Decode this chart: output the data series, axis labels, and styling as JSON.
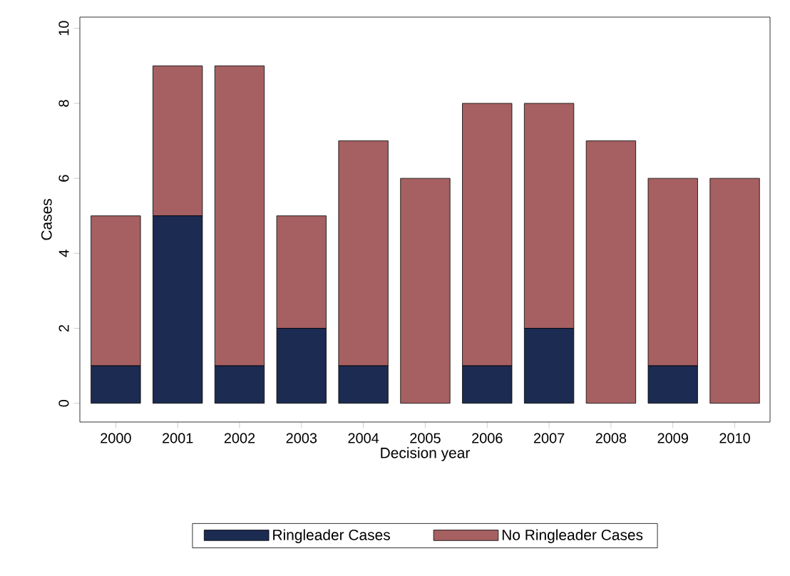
{
  "chart_data": {
    "type": "bar",
    "stacked": true,
    "xlabel": "Decision year",
    "ylabel": "Cases",
    "categories": [
      "2000",
      "2001",
      "2002",
      "2003",
      "2004",
      "2005",
      "2006",
      "2007",
      "2008",
      "2009",
      "2010"
    ],
    "series": [
      {
        "name": "Ringleader Cases",
        "color": "#1c2b52",
        "values": [
          1,
          5,
          1,
          2,
          1,
          0,
          1,
          2,
          0,
          1,
          0
        ]
      },
      {
        "name": "No Ringleader Cases",
        "color": "#a66062",
        "values": [
          4,
          4,
          8,
          3,
          6,
          6,
          7,
          6,
          7,
          5,
          6
        ]
      }
    ],
    "ylim": [
      -0.5,
      10.3
    ],
    "yticks": [
      0,
      2,
      4,
      6,
      8,
      10
    ],
    "grid": false,
    "legend": "bottom"
  }
}
